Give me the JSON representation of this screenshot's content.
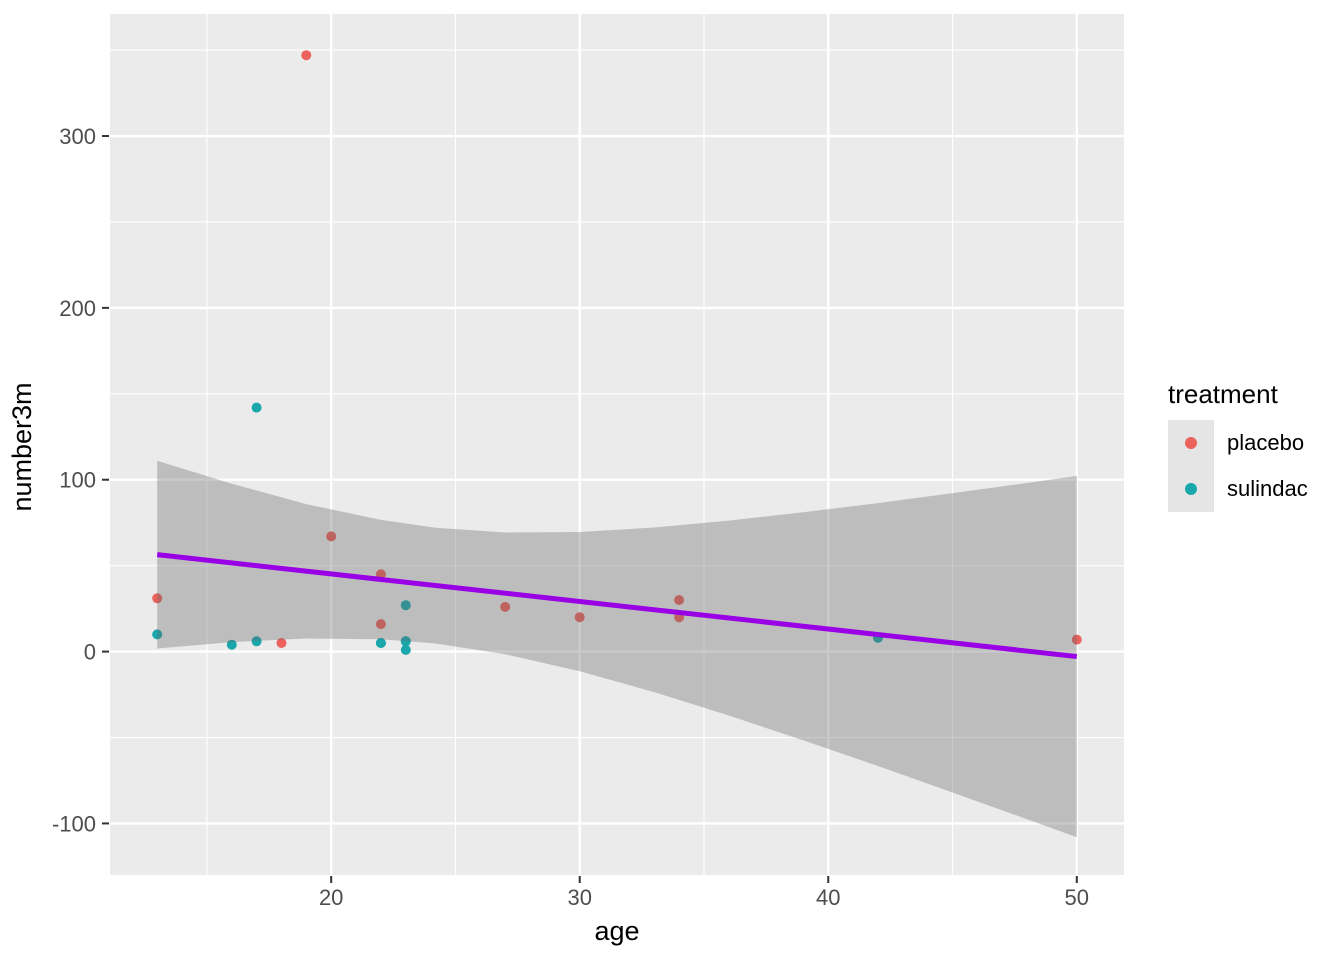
{
  "figure": {
    "background": "#FFFFFF"
  },
  "chart_data": {
    "type": "scatter",
    "title": "",
    "xlabel": "age",
    "ylabel": "number3m",
    "xlim": [
      11.1,
      51.9
    ],
    "ylim": [
      -130,
      371
    ],
    "x_ticks": [
      20,
      30,
      40,
      50
    ],
    "y_ticks": [
      -100,
      0,
      100,
      200,
      300
    ],
    "x_minor": [
      15,
      25,
      35,
      45
    ],
    "y_minor": [
      -50,
      50,
      150,
      250,
      350
    ],
    "grid": "major and minor white gridlines on grey panel",
    "panel_bg": "#EBEBEB",
    "grid_color": "#FFFFFF",
    "tick_label_color": "#4D4D4D",
    "tick_mark_color": "#333333",
    "legend_position": "right",
    "series": [
      {
        "name": "placebo",
        "color": "#EC625C",
        "points": [
          [
            13,
            31
          ],
          [
            18,
            5
          ],
          [
            19,
            347
          ],
          [
            20,
            67
          ],
          [
            22,
            16
          ],
          [
            22,
            45
          ],
          [
            27,
            26
          ],
          [
            30,
            20
          ],
          [
            34,
            20
          ],
          [
            34,
            30
          ],
          [
            50,
            7
          ]
        ]
      },
      {
        "name": "sulindac",
        "color": "#1AA7AC",
        "points": [
          [
            13,
            10
          ],
          [
            16,
            4
          ],
          [
            17,
            6
          ],
          [
            17,
            142
          ],
          [
            22,
            5
          ],
          [
            22,
            5
          ],
          [
            23,
            1
          ],
          [
            23,
            6
          ],
          [
            23,
            6
          ],
          [
            23,
            27
          ],
          [
            42,
            8
          ]
        ]
      }
    ],
    "smooth": {
      "method": "lm",
      "color": "#9900E6",
      "line": [
        [
          13,
          56.4
        ],
        [
          50,
          -2.9
        ]
      ],
      "ribbon_color": "#666666",
      "ribbon_opacity": 0.35,
      "ribbon": [
        [
          13,
          1.8,
          111.0
        ],
        [
          16,
          5.5,
          97.7
        ],
        [
          19,
          7.6,
          85.8
        ],
        [
          22,
          7.2,
          76.6
        ],
        [
          24.2,
          4.7,
          72.1
        ],
        [
          27,
          -1.5,
          69.3
        ],
        [
          30,
          -11.4,
          69.6
        ],
        [
          33,
          -23.6,
          72.2
        ],
        [
          36,
          -37.2,
          76.2
        ],
        [
          39,
          -51.7,
          81.1
        ],
        [
          42,
          -66.6,
          86.4
        ],
        [
          45,
          -82.0,
          92.2
        ],
        [
          48,
          -97.6,
          98.1
        ],
        [
          50,
          -108.0,
          102.2
        ]
      ]
    }
  },
  "legend": {
    "title": "treatment",
    "items": [
      {
        "label": "placebo",
        "color": "#EC625C"
      },
      {
        "label": "sulindac",
        "color": "#1AA7AC"
      }
    ]
  }
}
